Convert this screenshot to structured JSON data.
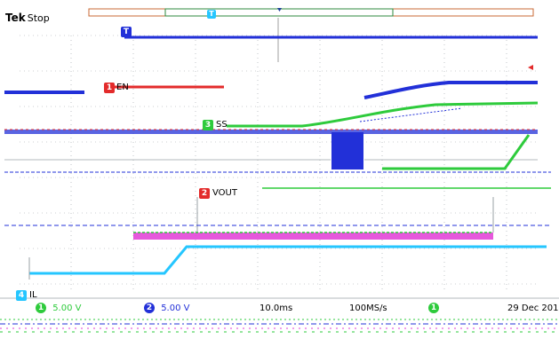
{
  "header": {
    "brand": "Tek",
    "run_state": "Stop"
  },
  "trigger_marker": "T",
  "channels": [
    {
      "number": "1",
      "label": "EN",
      "color": "#e32b2b"
    },
    {
      "number": "3",
      "label": "SS",
      "color": "#2ecb3c"
    },
    {
      "number": "2",
      "label": "VOUT",
      "color": "#e32b2b"
    },
    {
      "number": "4",
      "label": "IL",
      "color": "#25c6ff"
    }
  ],
  "readouts": {
    "ch1_scale": "5.00 V",
    "ch2_scale": "5.00 V",
    "timebase": "10.0ms",
    "sample_rate": "100MS/s",
    "date": "29 Dec 201"
  },
  "colors": {
    "ch1": "#e32b2b",
    "ch2": "#e32b2b",
    "ch3": "#2ecb3c",
    "ch4": "#25c6ff",
    "trace_blue": "#2230d8",
    "magenta": "#e23bd6",
    "grid": "#9aa0a6"
  }
}
